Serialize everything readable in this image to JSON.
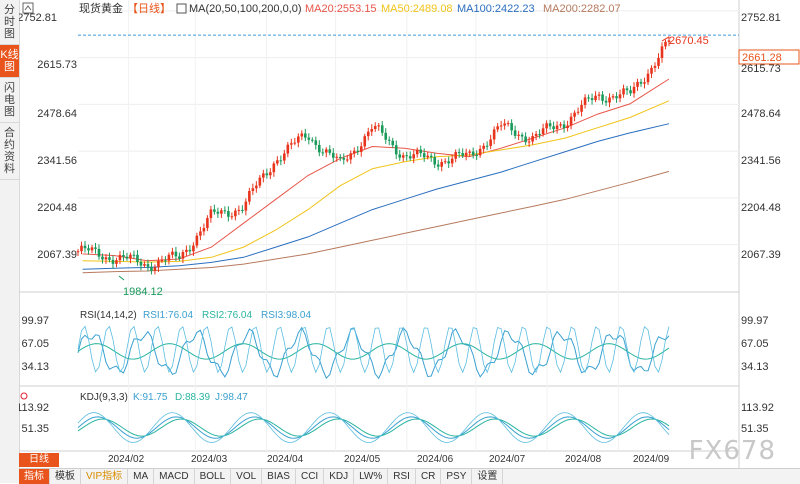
{
  "sidebar": {
    "tabs": [
      "分时图",
      "K线图",
      "闪电图",
      "合约资料"
    ],
    "active": 1
  },
  "header": {
    "name": "现货黄金",
    "period": "【日线】",
    "ma_label": "MA(20,50,100,200,0,0)",
    "ma_values": [
      {
        "label": "MA20:2553.15",
        "color": "#e8564a"
      },
      {
        "label": "MA50:2489.08",
        "color": "#f0c419"
      },
      {
        "label": "MA100:2422.23",
        "color": "#2b6fbf"
      },
      {
        "label": "MA200:2282.07",
        "color": "#b77a5e"
      }
    ]
  },
  "price_panel": {
    "y_ticks": [
      "2752.81",
      "2615.73",
      "2478.64",
      "2341.56",
      "2204.48",
      "2067.39"
    ],
    "y_tick_values": [
      2752.81,
      2615.73,
      2478.64,
      2341.56,
      2204.48,
      2067.39
    ],
    "current_price_label": "2661.28",
    "current_price": 2661.28,
    "high_label": "2670.45",
    "high_value": 2670.45,
    "low_label": "1984.12",
    "low_value": 1984.12
  },
  "rsi_panel": {
    "title": "RSI(14,14,2)",
    "values": [
      {
        "label": "RSI1:76.04",
        "color": "#3aa0d0"
      },
      {
        "label": "RSI2:76.04",
        "color": "#2bb5a0"
      },
      {
        "label": "RSI3:98.04",
        "color": "#3aa0d0"
      }
    ],
    "y_ticks": [
      "99.97",
      "67.05",
      "34.13"
    ],
    "y_tick_values": [
      99.97,
      67.05,
      34.13
    ]
  },
  "kdj_panel": {
    "title": "KDJ(9,3,3)",
    "values": [
      {
        "label": "K:91.75",
        "color": "#3aa0d0"
      },
      {
        "label": "D:88.39",
        "color": "#2bb5a0"
      },
      {
        "label": "J:98.47",
        "color": "#3aa0d0"
      }
    ],
    "y_ticks": [
      "113.92",
      "51.35"
    ],
    "y_tick_values": [
      113.92,
      51.35
    ]
  },
  "x_axis": {
    "labels": [
      "2024/02",
      "2024/03",
      "2024/04",
      "2024/05",
      "2024/06",
      "2024/07",
      "2024/08",
      "2024/09"
    ]
  },
  "period_button": "日线",
  "bottom_toolbar": [
    "指标",
    "模板",
    "VIP指标",
    "MA",
    "MACD",
    "BOLL",
    "VOL",
    "BIAS",
    "CCI",
    "KDJ",
    "LW%",
    "RSI",
    "CR",
    "PSY",
    "设置"
  ],
  "watermark": "FX678",
  "colors": {
    "up": "#e8341c",
    "down": "#1a9a5a",
    "accent": "#e8541b"
  },
  "chart_data": {
    "type": "candlestick",
    "title": "现货黄金【日线】",
    "ylim": [
      1940,
      2770
    ],
    "x_range": [
      "2024-01-10",
      "2024-09-23"
    ],
    "x": [
      "2024-01-12",
      "2024-01-26",
      "2024-02-09",
      "2024-02-23",
      "2024-03-08",
      "2024-03-22",
      "2024-04-05",
      "2024-04-19",
      "2024-05-03",
      "2024-05-17",
      "2024-05-31",
      "2024-06-14",
      "2024-06-28",
      "2024-07-12",
      "2024-07-26",
      "2024-08-09",
      "2024-08-23",
      "2024-09-06",
      "2024-09-23"
    ],
    "series": [
      {
        "name": "close",
        "values": [
          2048,
          2030,
          2010,
          2028,
          2150,
          2180,
          2320,
          2390,
          2300,
          2410,
          2330,
          2315,
          2325,
          2412,
          2380,
          2431,
          2505,
          2505,
          2661
        ]
      },
      {
        "name": "MA20",
        "values": [
          2040,
          2035,
          2020,
          2025,
          2060,
          2130,
          2200,
          2270,
          2320,
          2355,
          2350,
          2335,
          2325,
          2350,
          2380,
          2410,
          2450,
          2480,
          2553
        ]
      },
      {
        "name": "MA50",
        "values": [
          2020,
          2018,
          2016,
          2018,
          2030,
          2060,
          2110,
          2170,
          2240,
          2290,
          2310,
          2325,
          2330,
          2345,
          2360,
          2380,
          2410,
          2440,
          2489
        ]
      },
      {
        "name": "MA100",
        "values": [
          1995,
          1998,
          2000,
          2005,
          2015,
          2030,
          2060,
          2090,
          2130,
          2170,
          2200,
          2230,
          2255,
          2280,
          2310,
          2340,
          2370,
          2395,
          2422
        ]
      },
      {
        "name": "MA200",
        "values": [
          1985,
          1988,
          1990,
          1995,
          2000,
          2010,
          2025,
          2040,
          2060,
          2080,
          2100,
          2120,
          2140,
          2160,
          2180,
          2200,
          2225,
          2250,
          2282
        ]
      }
    ]
  }
}
